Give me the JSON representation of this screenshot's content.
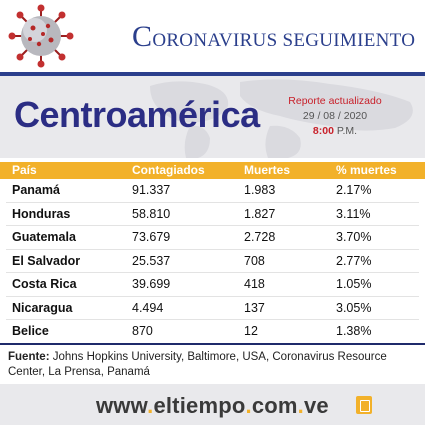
{
  "header": {
    "title_cap": "C",
    "title_rest": "ORONAVIRUS SEGUIMIENTO",
    "virus_icon": "coronavirus-icon"
  },
  "panel": {
    "region": "Centroamérica",
    "report_line1": "Reporte actualizado",
    "report_date": "29 / 08 / 2020",
    "report_time": "8:00",
    "report_period": "P.M."
  },
  "table": {
    "headers": [
      "País",
      "Contagiados",
      "Muertes",
      "% muertes"
    ],
    "rows": [
      {
        "pais": "Panamá",
        "contagiados": "91.337",
        "muertes": "1.983",
        "pct": "2.17%"
      },
      {
        "pais": "Honduras",
        "contagiados": "58.810",
        "muertes": "1.827",
        "pct": "3.11%"
      },
      {
        "pais": "Guatemala",
        "contagiados": "73.679",
        "muertes": "2.728",
        "pct": "3.70%"
      },
      {
        "pais": "El Salvador",
        "contagiados": "25.537",
        "muertes": "708",
        "pct": "2.77%"
      },
      {
        "pais": "Costa Rica",
        "contagiados": "39.699",
        "muertes": "418",
        "pct": "1.05%"
      },
      {
        "pais": "Nicaragua",
        "contagiados": "4.494",
        "muertes": "137",
        "pct": "3.05%"
      },
      {
        "pais": "Belice",
        "contagiados": "870",
        "muertes": "12",
        "pct": "1.38%"
      }
    ]
  },
  "source": {
    "label": "Fuente:",
    "text": " Johns Hopkins University, Baltimore, USA, Coronavirus Resource Center, La Prensa, Panamá"
  },
  "footer": {
    "url_a": "www",
    "url_b": "eltiempo",
    "url_c": "com",
    "url_d": "ve",
    "dot": ".",
    "logo_icon": "eltiempo-logo-icon"
  },
  "colors": {
    "brand_blue": "#2b3f8c",
    "accent_yellow": "#f2b12a",
    "accent_red": "#c8202a"
  }
}
